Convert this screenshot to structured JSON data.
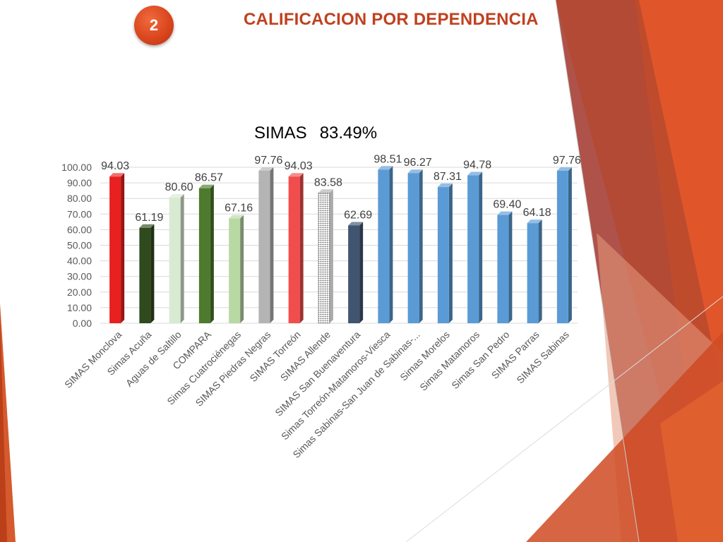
{
  "slide": {
    "number": "2",
    "title": "CALIFICACION POR DEPENDENCIA"
  },
  "colors": {
    "accent": "#d8431c",
    "title": "#c0411f",
    "blue_bar": "#5b9bd5"
  },
  "chart_data": {
    "type": "bar",
    "title": "SIMAS",
    "overall_value": "83.49%",
    "xlabel": "",
    "ylabel": "",
    "ylim": [
      0,
      100
    ],
    "y_ticks": [
      "0.00",
      "10.00",
      "20.00",
      "30.00",
      "40.00",
      "50.00",
      "60.00",
      "70.00",
      "80.00",
      "90.00",
      "100.00"
    ],
    "grid": true,
    "legend": "none",
    "categories": [
      "SIMAS Monclova",
      "Simas Acuña",
      "Aguas de Saltillo",
      "COMPARA",
      "Simas Cuatrociénegas",
      "SIMAS Piedras Negras",
      "SIMAS Torreón",
      "SIMAS Allende",
      "SIMAS San Buenaventura",
      "Simas Torreón-Matamoros-Viesca",
      "Simas Sabinas-San Juan de Sabinas-...",
      "Simas Morelos",
      "Simas Matamoros",
      "Simas San Pedro",
      "SIMAS Parras",
      "SIMAS Sabinas"
    ],
    "values": [
      94.03,
      61.19,
      80.6,
      86.57,
      67.16,
      97.76,
      94.03,
      83.58,
      62.69,
      98.51,
      96.27,
      87.31,
      94.78,
      69.4,
      64.18,
      97.76
    ],
    "data_labels": [
      "94.03",
      "61.19",
      "80.60",
      "86.57",
      "67.16",
      "97.76",
      "94.03",
      "83.58",
      "62.69",
      "98.51",
      "96.27",
      "87.31",
      "94.78",
      "69.40",
      "64.18",
      "97.76"
    ],
    "bar_colors": [
      "#e8201f",
      "#2f4a1d",
      "#d9ead3",
      "#4d7a2e",
      "#b8d9a3",
      "#b4b4b4",
      "#f24d4d",
      "#dddddd",
      "#3f5570",
      "#5b9bd5",
      "#5b9bd5",
      "#5b9bd5",
      "#5b9bd5",
      "#5b9bd5",
      "#5b9bd5",
      "#5b9bd5"
    ],
    "bar_patterns": [
      "",
      "",
      "",
      "",
      "",
      "",
      "",
      "dotted",
      "",
      "",
      "",
      "",
      "",
      "",
      "",
      ""
    ]
  }
}
